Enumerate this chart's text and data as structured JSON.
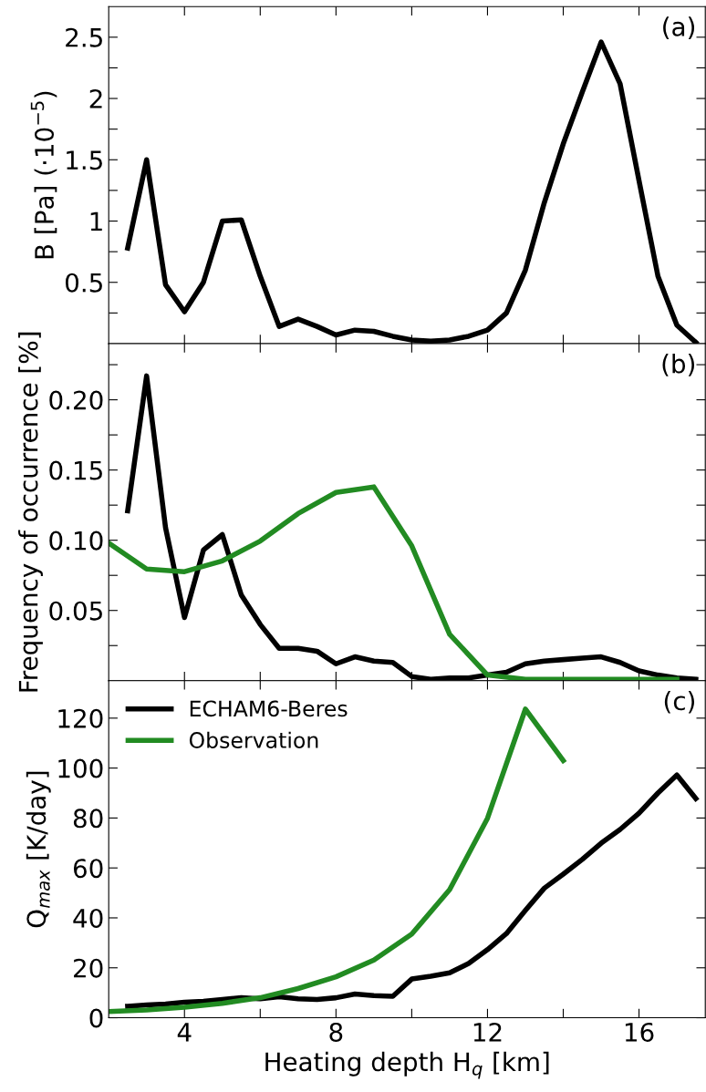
{
  "chart_data": [
    {
      "type": "line",
      "ylabel": "B [Pa] (·10$^{−5}$)",
      "annotations": [
        "(a)"
      ],
      "tick_labels": "y",
      "xlim": [
        2,
        17.75
      ],
      "xticks": [
        {
          "value": 4,
          "label": null
        },
        {
          "value": 6,
          "label": null
        },
        {
          "value": 8,
          "label": null
        },
        {
          "value": 10,
          "label": null
        },
        {
          "value": 12,
          "label": null
        },
        {
          "value": 14,
          "label": null
        },
        {
          "value": 16,
          "label": null
        }
      ],
      "ylim": [
        0,
        2.75
      ],
      "yticks": [
        {
          "value": 0.25,
          "label": null
        },
        0.5,
        {
          "value": 0.75,
          "label": null
        },
        1,
        {
          "value": 1.25,
          "label": null
        },
        1.5,
        {
          "value": 1.75,
          "label": null
        },
        2,
        {
          "value": 2.25,
          "label": null
        },
        2.5
      ],
      "x": [
        2.5,
        3,
        3.5,
        4,
        4.5,
        5,
        5.5,
        6,
        6.5,
        7,
        7.5,
        8,
        8.5,
        9,
        9.5,
        10,
        10.5,
        11,
        11.5,
        12,
        12.5,
        13,
        13.5,
        14,
        14.5,
        15,
        15.5,
        16,
        16.5,
        17,
        17.5
      ],
      "series": [
        {
          "color": "#000000",
          "values": [
            0.78,
            1.5,
            0.48,
            0.26,
            0.5,
            1.0,
            1.01,
            0.55,
            0.14,
            0.2,
            0.14,
            0.07,
            0.11,
            0.1,
            0.06,
            0.03,
            0.02,
            0.03,
            0.06,
            0.11,
            0.25,
            0.6,
            1.15,
            1.63,
            2.05,
            2.46,
            2.12,
            1.33,
            0.55,
            0.15,
            0.01
          ]
        }
      ]
    },
    {
      "type": "line",
      "ylabel": "Frequency of occurrence [%]",
      "annotations": [
        "(b)"
      ],
      "tick_labels": "y",
      "xlim": [
        2,
        17.75
      ],
      "xticks": [
        {
          "value": 4,
          "label": null
        },
        {
          "value": 6,
          "label": null
        },
        {
          "value": 8,
          "label": null
        },
        {
          "value": 10,
          "label": null
        },
        {
          "value": 12,
          "label": null
        },
        {
          "value": 14,
          "label": null
        },
        {
          "value": 16,
          "label": null
        }
      ],
      "ylim": [
        0,
        0.24
      ],
      "yticks": [
        {
          "value": 0.025,
          "label": null
        },
        {
          "value": 0.05,
          "label": "0.05"
        },
        {
          "value": 0.075,
          "label": null
        },
        {
          "value": 0.1,
          "label": "0.10"
        },
        {
          "value": 0.125,
          "label": null
        },
        {
          "value": 0.15,
          "label": "0.15"
        },
        {
          "value": 0.175,
          "label": null
        },
        {
          "value": 0.2,
          "label": "0.20"
        },
        {
          "value": 0.225,
          "label": null
        }
      ],
      "series": [
        {
          "color": "#000000",
          "x": [
            2.5,
            3,
            3.5,
            4,
            4.5,
            5,
            5.5,
            6,
            6.5,
            7,
            7.5,
            8,
            8.5,
            9,
            9.5,
            10,
            10.5,
            11,
            11.5,
            12,
            12.5,
            13,
            13.5,
            14,
            14.5,
            15,
            15.5,
            16,
            16.5,
            17,
            17.5
          ],
          "values": [
            0.121,
            0.217,
            0.109,
            0.045,
            0.093,
            0.104,
            0.061,
            0.04,
            0.023,
            0.023,
            0.021,
            0.012,
            0.017,
            0.014,
            0.013,
            0.003,
            0.001,
            0.002,
            0.002,
            0.004,
            0.006,
            0.012,
            0.014,
            0.015,
            0.016,
            0.017,
            0.013,
            0.007,
            0.004,
            0.002,
            0.001
          ]
        },
        {
          "color": "#228b22",
          "x": [
            2,
            3,
            4,
            5,
            6,
            7,
            8,
            9,
            10,
            11,
            12,
            13,
            14,
            15,
            16,
            17
          ],
          "values": [
            0.098,
            0.0795,
            0.0776,
            0.0853,
            0.0994,
            0.119,
            0.134,
            0.138,
            0.096,
            0.033,
            0.004,
            0.001,
            0.001,
            0.001,
            0.001,
            0.001
          ]
        }
      ]
    },
    {
      "type": "line",
      "ylabel": "Q$_{max}$ [K/day]",
      "xlabel": "Heating depth H$_{q}$ [km]",
      "annotations": [
        "(c)"
      ],
      "legend": "top left",
      "xlim": [
        2,
        17.75
      ],
      "xticks": [
        4,
        {
          "value": 6,
          "label": null
        },
        8,
        {
          "value": 10,
          "label": null
        },
        12,
        {
          "value": 14,
          "label": null
        },
        16
      ],
      "ylim": [
        0,
        135
      ],
      "yticks": [
        0,
        20,
        40,
        60,
        80,
        100,
        120
      ],
      "series": [
        {
          "name": "ECHAM6-Beres",
          "color": "#000000",
          "x": [
            2.5,
            3,
            3.5,
            4,
            4.5,
            5,
            5.5,
            6,
            6.5,
            7,
            7.5,
            8,
            8.5,
            9,
            9.5,
            10,
            10.5,
            11,
            11.5,
            12,
            12.5,
            13,
            13.5,
            14,
            14.5,
            15,
            15.5,
            16,
            16.5,
            17,
            17.5
          ],
          "values": [
            4.6,
            5.1,
            5.5,
            6.2,
            6.6,
            7.3,
            8.0,
            7.6,
            8.4,
            7.6,
            7.3,
            8.0,
            9.5,
            8.9,
            8.6,
            15.5,
            16.6,
            18.0,
            21.7,
            27.3,
            33.7,
            43.0,
            51.9,
            57.5,
            63.4,
            69.9,
            75.4,
            81.9,
            90.0,
            97.2,
            87.8
          ]
        },
        {
          "name": "Observation",
          "color": "#228b22",
          "x": [
            2,
            3,
            4,
            5,
            6,
            7,
            8,
            9,
            10,
            11,
            12,
            13,
            14
          ],
          "values": [
            2.5,
            3.1,
            4.2,
            5.8,
            8.0,
            11.7,
            16.4,
            23.1,
            33.5,
            51.3,
            79.9,
            123.6,
            103
          ]
        }
      ]
    }
  ]
}
